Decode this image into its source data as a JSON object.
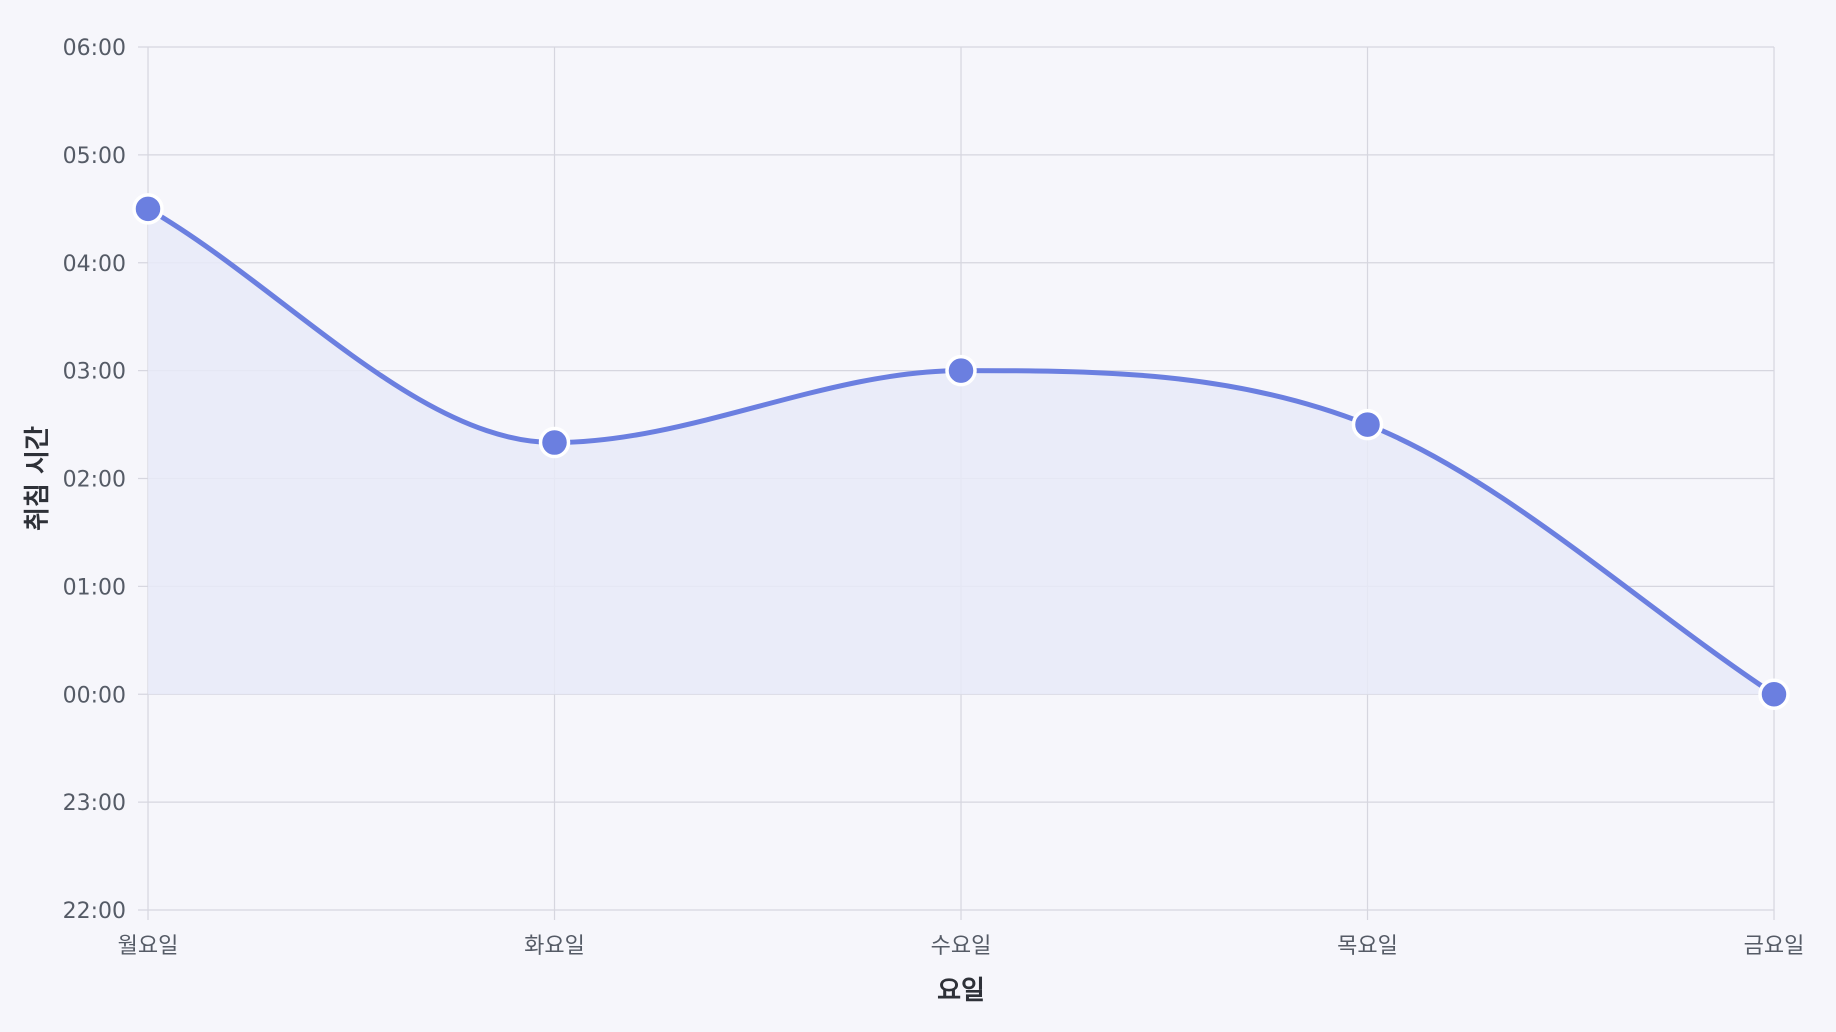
{
  "chart_data": {
    "type": "line",
    "xlabel": "요일",
    "ylabel": "취침 시간",
    "categories": [
      "월요일",
      "화요일",
      "수요일",
      "목요일",
      "금요일"
    ],
    "y_ticks": [
      "22:00",
      "23:00",
      "00:00",
      "01:00",
      "02:00",
      "03:00",
      "04:00",
      "05:00",
      "06:00"
    ],
    "ylim": [
      "22:00",
      "06:00"
    ],
    "series": [
      {
        "values": [
          "04:30",
          "02:20",
          "03:00",
          "02:30",
          "00:00"
        ]
      }
    ],
    "fill": "area-to-00:00",
    "smooth": true,
    "grid": true,
    "legend": "none",
    "colors": {
      "line": "#6b7fe0",
      "point": "#6b7fe0",
      "point_border": "#ffffff",
      "fill": "#e8eaf8",
      "grid": "#d6d6df",
      "background": "#f6f6fb"
    }
  }
}
